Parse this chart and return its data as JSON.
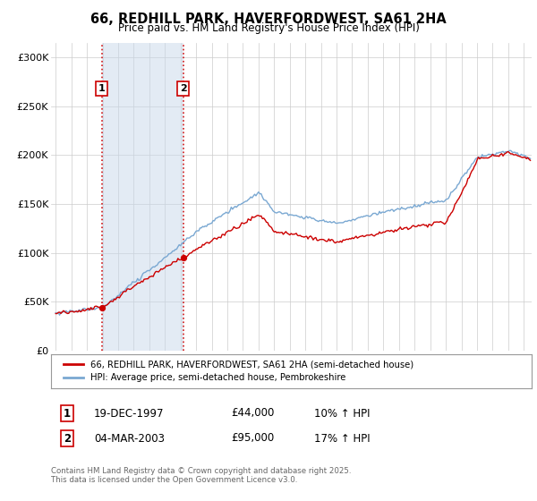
{
  "title": "66, REDHILL PARK, HAVERFORDWEST, SA61 2HA",
  "subtitle": "Price paid vs. HM Land Registry's House Price Index (HPI)",
  "ylabel_ticks": [
    "£0",
    "£50K",
    "£100K",
    "£150K",
    "£200K",
    "£250K",
    "£300K"
  ],
  "ytick_values": [
    0,
    50000,
    100000,
    150000,
    200000,
    250000,
    300000
  ],
  "ylim": [
    0,
    315000
  ],
  "xlim_start": 1994.7,
  "xlim_end": 2025.5,
  "purchase1_date": 1997.96,
  "purchase1_price": 44000,
  "purchase1_label": "1",
  "purchase2_date": 2003.17,
  "purchase2_price": 95000,
  "purchase2_label": "2",
  "red_line_color": "#cc0000",
  "blue_line_color": "#7aa8d2",
  "shaded_color": "#c8d8ea",
  "legend_line1": "66, REDHILL PARK, HAVERFORDWEST, SA61 2HA (semi-detached house)",
  "legend_line2": "HPI: Average price, semi-detached house, Pembrokeshire",
  "table_row1": [
    "1",
    "19-DEC-1997",
    "£44,000",
    "10% ↑ HPI"
  ],
  "table_row2": [
    "2",
    "04-MAR-2003",
    "£95,000",
    "17% ↑ HPI"
  ],
  "footnote": "Contains HM Land Registry data © Crown copyright and database right 2025.\nThis data is licensed under the Open Government Licence v3.0.",
  "background_color": "#ffffff",
  "grid_color": "#cccccc"
}
